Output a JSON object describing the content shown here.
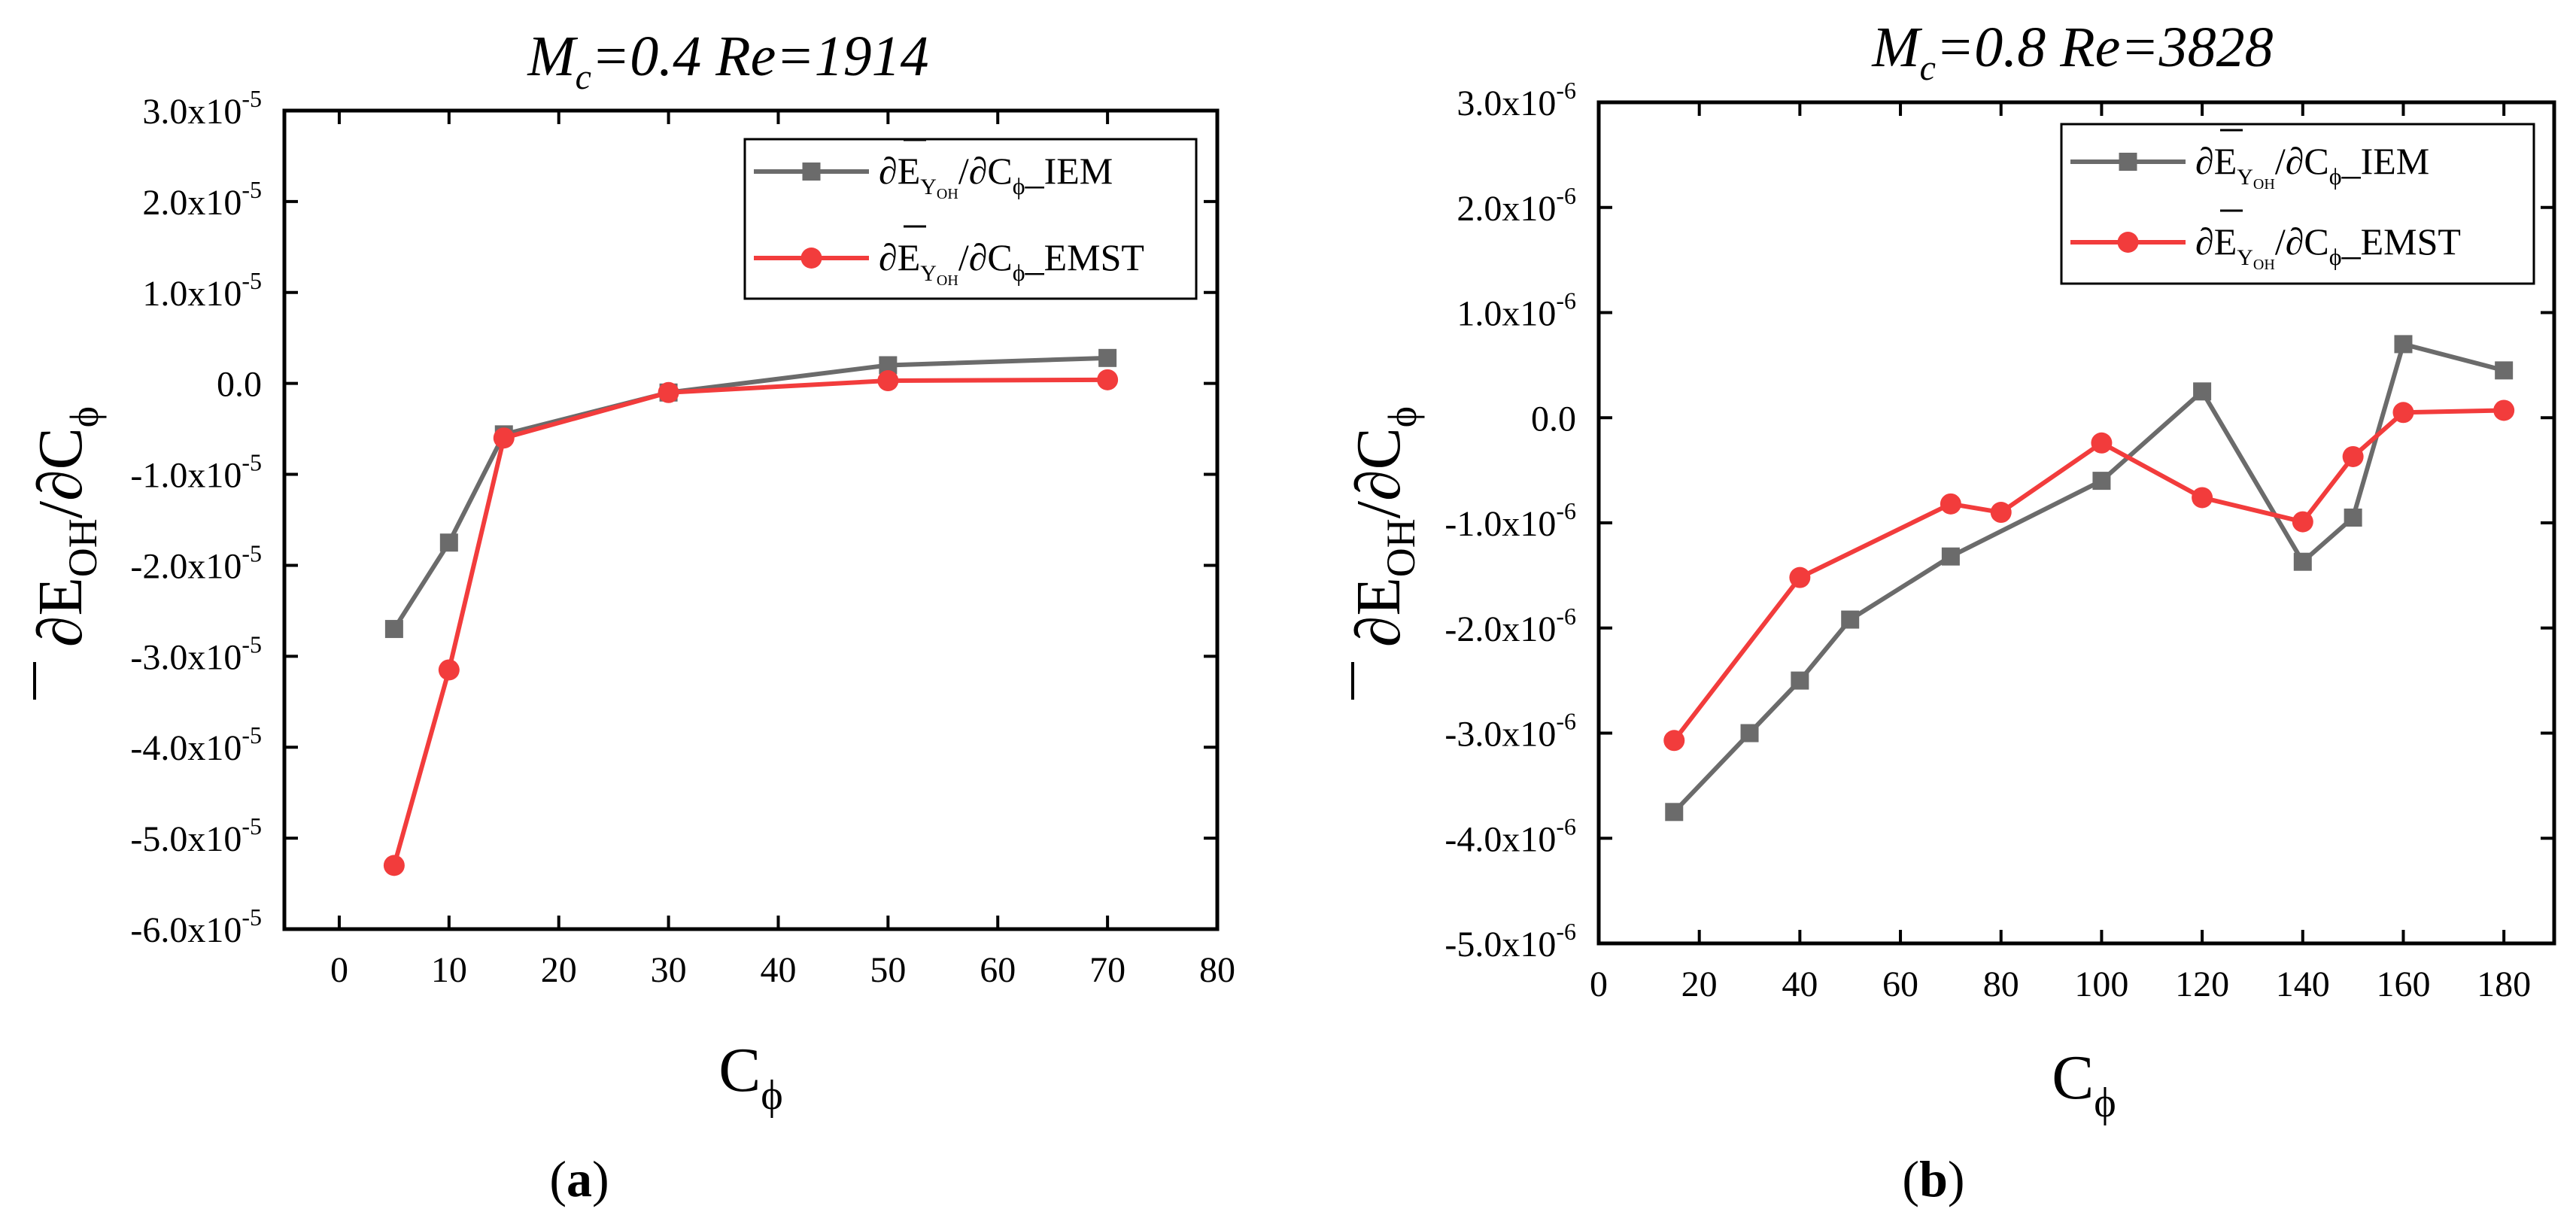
{
  "chart_data": [
    {
      "type": "line",
      "panel_label": "a",
      "title": {
        "main": "M",
        "sub": "c",
        "rest": "=0.4  Re=1914"
      },
      "xlabel": {
        "main": "C",
        "sub": "ϕ"
      },
      "ylabel": {
        "main": "∂E",
        "sub": "OH",
        "rest": "/∂C",
        "sub2": "ϕ"
      },
      "xlim": [
        -5,
        80
      ],
      "ylim": [
        -6e-05,
        3e-05
      ],
      "xticks": [
        0,
        10,
        20,
        30,
        40,
        50,
        60,
        70,
        80
      ],
      "yticks": [
        {
          "value": 3e-05,
          "mant": "3.0x10",
          "exp": "-5"
        },
        {
          "value": 2e-05,
          "mant": "2.0x10",
          "exp": "-5"
        },
        {
          "value": 1e-05,
          "mant": "1.0x10",
          "exp": "-5"
        },
        {
          "value": 0,
          "mant": "0.0",
          "exp": ""
        },
        {
          "value": -1e-05,
          "mant": "-1.0x10",
          "exp": "-5"
        },
        {
          "value": -2e-05,
          "mant": "-2.0x10",
          "exp": "-5"
        },
        {
          "value": -3e-05,
          "mant": "-3.0x10",
          "exp": "-5"
        },
        {
          "value": -4e-05,
          "mant": "-4.0x10",
          "exp": "-5"
        },
        {
          "value": -5e-05,
          "mant": "-5.0x10",
          "exp": "-5"
        },
        {
          "value": -6e-05,
          "mant": "-6.0x10",
          "exp": "-5"
        }
      ],
      "legend_position": "top-right",
      "series": [
        {
          "name": "IEM",
          "legend": {
            "a": "∂E",
            "b": "Y",
            "c": "OH",
            "d": "/∂C",
            "e": "ϕ",
            "f": "_IEM"
          },
          "color": "#6b6b6b",
          "marker": "square",
          "x": [
            5,
            10,
            15,
            30,
            50,
            70
          ],
          "y": [
            -2.7e-05,
            -1.75e-05,
            -5.6e-06,
            -1e-06,
            2e-06,
            2.8e-06
          ]
        },
        {
          "name": "EMST",
          "legend": {
            "a": "∂E",
            "b": "Y",
            "c": "OH",
            "d": "/∂C",
            "e": "ϕ",
            "f": "_EMST"
          },
          "color": "#f23c3c",
          "marker": "circle",
          "x": [
            5,
            10,
            15,
            30,
            50,
            70
          ],
          "y": [
            -5.3e-05,
            -3.15e-05,
            -6e-06,
            -1e-06,
            3e-07,
            4e-07
          ]
        }
      ]
    },
    {
      "type": "line",
      "panel_label": "b",
      "title": {
        "main": "M",
        "sub": "c",
        "rest": "=0.8  Re=3828"
      },
      "xlabel": {
        "main": "C",
        "sub": "ϕ"
      },
      "ylabel": {
        "main": "∂E",
        "sub": "OH",
        "rest": "/∂C",
        "sub2": "ϕ"
      },
      "xlim": [
        0,
        190
      ],
      "ylim": [
        -5e-06,
        3e-06
      ],
      "xticks": [
        0,
        20,
        40,
        60,
        80,
        100,
        120,
        140,
        160,
        180
      ],
      "yticks": [
        {
          "value": 3e-06,
          "mant": "3.0x10",
          "exp": "-6"
        },
        {
          "value": 2e-06,
          "mant": "2.0x10",
          "exp": "-6"
        },
        {
          "value": 1e-06,
          "mant": "1.0x10",
          "exp": "-6"
        },
        {
          "value": 0,
          "mant": "0.0",
          "exp": ""
        },
        {
          "value": -1e-06,
          "mant": "-1.0x10",
          "exp": "-6"
        },
        {
          "value": -2e-06,
          "mant": "-2.0x10",
          "exp": "-6"
        },
        {
          "value": -3e-06,
          "mant": "-3.0x10",
          "exp": "-6"
        },
        {
          "value": -4e-06,
          "mant": "-4.0x10",
          "exp": "-6"
        },
        {
          "value": -5e-06,
          "mant": "-5.0x10",
          "exp": "-6"
        }
      ],
      "legend_position": "top-right",
      "series": [
        {
          "name": "IEM",
          "legend": {
            "a": "∂E",
            "b": "Y",
            "c": "OH",
            "d": "/∂C",
            "e": "ϕ",
            "f": "_IEM"
          },
          "color": "#6b6b6b",
          "marker": "square",
          "x": [
            15,
            30,
            40,
            50,
            70,
            100,
            120,
            140,
            150,
            160,
            180
          ],
          "y": [
            -3.75e-06,
            -3e-06,
            -2.5e-06,
            -1.92e-06,
            -1.32e-06,
            -6e-07,
            2.5e-07,
            -1.37e-06,
            -9.5e-07,
            7e-07,
            4.5e-07
          ]
        },
        {
          "name": "EMST",
          "legend": {
            "a": "∂E",
            "b": "Y",
            "c": "OH",
            "d": "/∂C",
            "e": "ϕ",
            "f": "_EMST"
          },
          "color": "#f23c3c",
          "marker": "circle",
          "x": [
            15,
            40,
            70,
            80,
            100,
            120,
            140,
            150,
            160,
            180
          ],
          "y": [
            -3.07e-06,
            -1.52e-06,
            -8.2e-07,
            -9e-07,
            -2.4e-07,
            -7.6e-07,
            -9.9e-07,
            -3.7e-07,
            5e-08,
            7e-08
          ]
        }
      ]
    }
  ]
}
